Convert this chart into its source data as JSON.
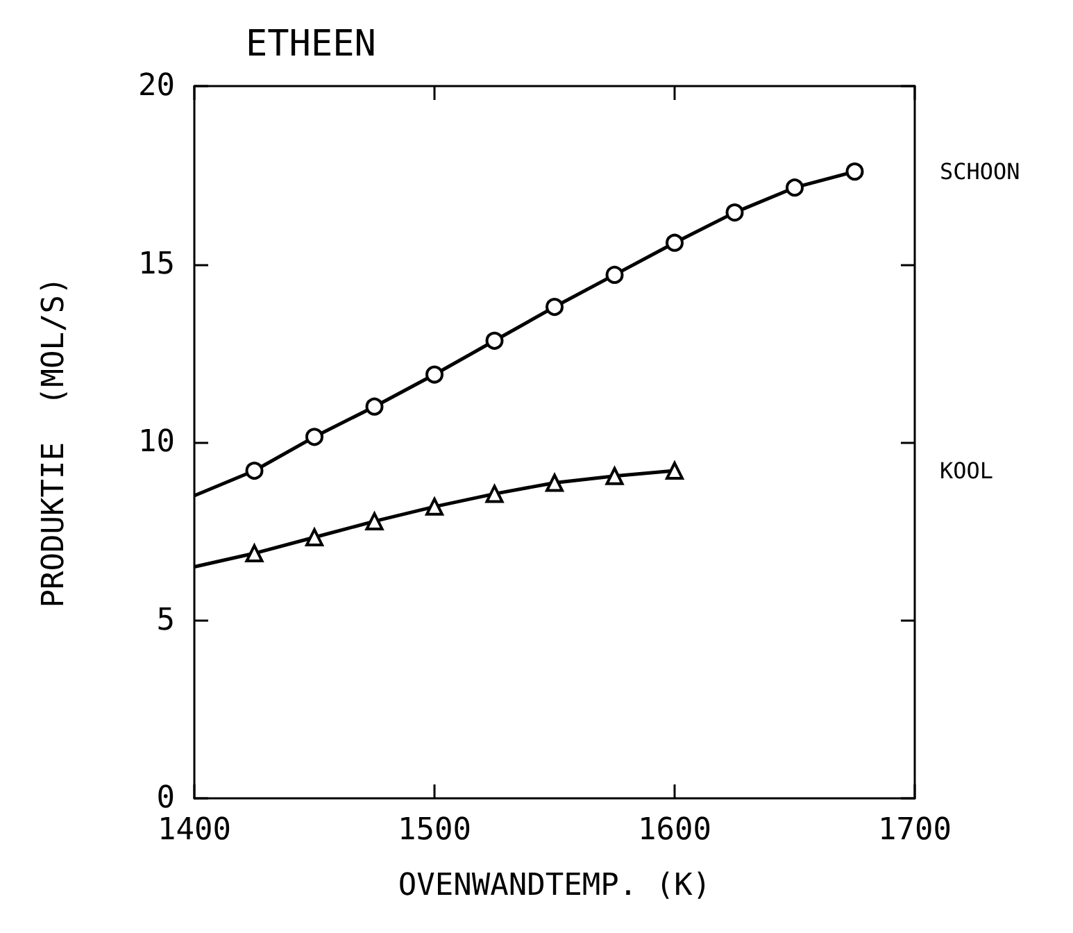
{
  "chart_data": {
    "type": "line",
    "title": "ETHEEN",
    "xlabel": "OVENWANDTEMP. (K)",
    "ylabel": "PRODUKTIE  (MOL/S)",
    "xlim": [
      1400,
      1700
    ],
    "xticks": [
      1400,
      1500,
      1600,
      1700
    ],
    "ylim": [
      0,
      20
    ],
    "yticks": [
      0,
      5,
      10,
      15,
      20
    ],
    "grid": false,
    "legend": false,
    "line_style": "solid",
    "series": [
      {
        "name": "SCHOON",
        "color": "#000000",
        "marker": "circle",
        "x": [
          1400,
          1425,
          1450,
          1475,
          1500,
          1525,
          1550,
          1575,
          1600,
          1625,
          1650,
          1675
        ],
        "values": [
          8.5,
          9.2,
          10.15,
          11.0,
          11.9,
          12.85,
          13.8,
          14.7,
          15.6,
          16.45,
          17.15,
          17.6
        ]
      },
      {
        "name": "KOOL",
        "color": "#000000",
        "marker": "triangle",
        "x": [
          1400,
          1425,
          1450,
          1475,
          1500,
          1525,
          1550,
          1575,
          1600
        ],
        "values": [
          6.5,
          6.88,
          7.33,
          7.78,
          8.19,
          8.55,
          8.86,
          9.05,
          9.2
        ]
      }
    ]
  }
}
